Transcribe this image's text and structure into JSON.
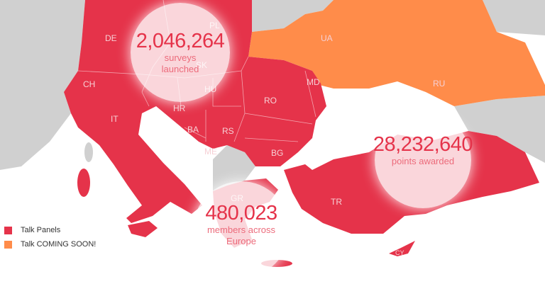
{
  "colors": {
    "active": "#e5334a",
    "coming_soon": "#ff8c4a",
    "other": "#d0d0d0"
  },
  "countries": {
    "active": [
      "DE",
      "PL",
      "SK",
      "HU",
      "CH",
      "IT",
      "HR",
      "BA",
      "RS",
      "ME",
      "RO",
      "MD",
      "BG",
      "GR",
      "TR",
      "CY"
    ],
    "coming_soon": [
      "UA",
      "RU"
    ]
  },
  "stats": [
    {
      "value": "2,046,264",
      "label": "surveys launched",
      "label_lines": [
        "surveys",
        "launched"
      ]
    },
    {
      "value": "28,232,640",
      "label": "points awarded",
      "label_lines": [
        "points awarded"
      ]
    },
    {
      "value": "480,023",
      "label": "members across Europe",
      "label_lines": [
        "members across",
        "Europe"
      ]
    }
  ],
  "legend": [
    {
      "label": "Talk Panels",
      "color": "#e5334a"
    },
    {
      "label": "Talk COMING SOON!",
      "color": "#ff8c4a"
    }
  ]
}
